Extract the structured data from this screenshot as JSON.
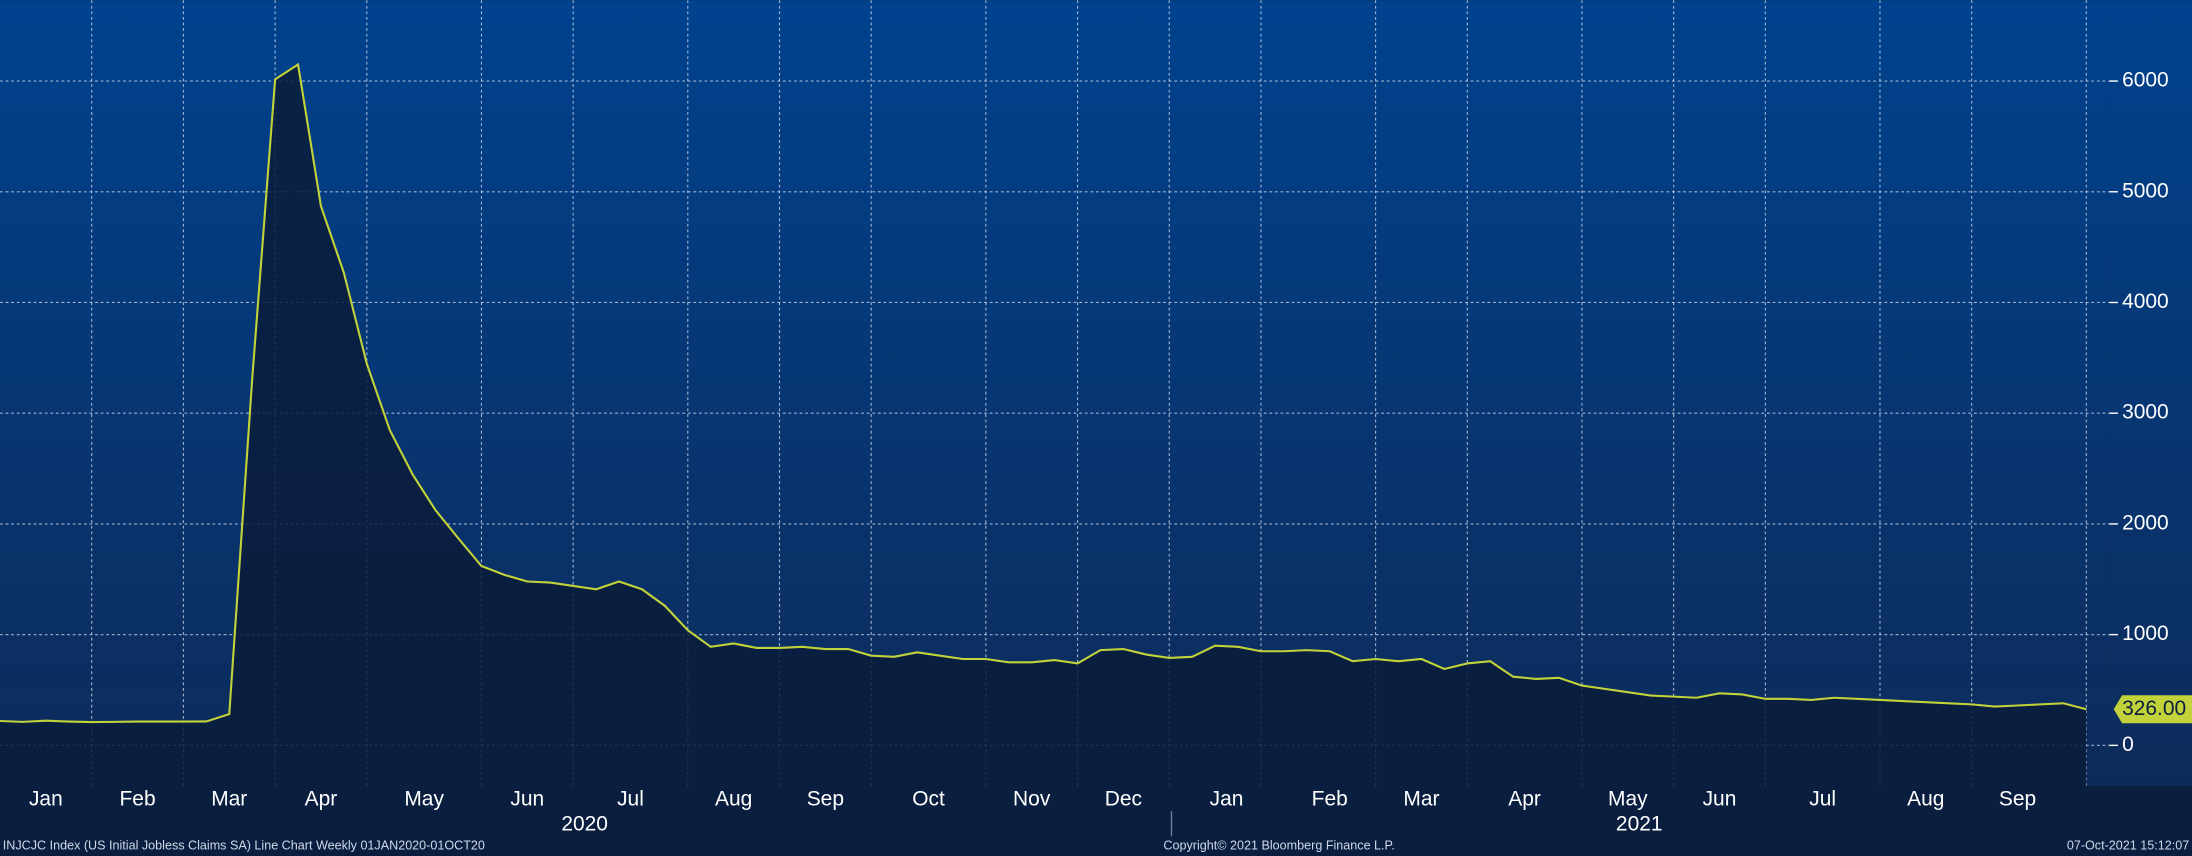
{
  "chart_data": {
    "type": "line",
    "footer_left": "INJCJC Index (US Initial Jobless Claims SA) Line Chart  Weekly 01JAN2020-01OCT20",
    "footer_center": "Copyright© 2021 Bloomberg Finance L.P.",
    "footer_right": "07-Oct-2021 15:12:07",
    "series": [
      {
        "name": "INJCJC Index",
        "color": "#c2d23a",
        "values": [
          220,
          212,
          223,
          215,
          210,
          212,
          215,
          215,
          215,
          216,
          282,
          3307,
          6015,
          6149,
          4869,
          4267,
          3446,
          2849,
          2446,
          2123,
          1867,
          1620,
          1540,
          1480,
          1470,
          1440,
          1410,
          1480,
          1410,
          1260,
          1040,
          890,
          920,
          880,
          880,
          890,
          870,
          870,
          810,
          800,
          840,
          810,
          780,
          780,
          750,
          750,
          770,
          740,
          860,
          870,
          820,
          790,
          800,
          900,
          890,
          850,
          850,
          860,
          850,
          760,
          780,
          760,
          780,
          690,
          740,
          760,
          620,
          600,
          610,
          540,
          510,
          480,
          450,
          440,
          430,
          470,
          460,
          420,
          420,
          410,
          430,
          420,
          410,
          400,
          390,
          380,
          370,
          350,
          360,
          370,
          380,
          326
        ],
        "value_labels": [
          null,
          null,
          null,
          null,
          null,
          null,
          null,
          null,
          null,
          null,
          null,
          null,
          null,
          null,
          null,
          null,
          null,
          null,
          null,
          null,
          null,
          null,
          null,
          null,
          null,
          null,
          null,
          null,
          null,
          null,
          null,
          null,
          null,
          null,
          null,
          null,
          null,
          null,
          null,
          null,
          null,
          null,
          null,
          null,
          null,
          null,
          null,
          null,
          null,
          null,
          null,
          null,
          null,
          null,
          null,
          null,
          null,
          null,
          null,
          null,
          null,
          null,
          null,
          null,
          null,
          null,
          null,
          null,
          null,
          null,
          null,
          null,
          null,
          null,
          null,
          null,
          null,
          null,
          null,
          null,
          null,
          null,
          null,
          null,
          null,
          null,
          null,
          null,
          null,
          null,
          null,
          "326.00"
        ]
      }
    ],
    "xlim": [
      0,
      92
    ],
    "xticks": [
      {
        "value": 2,
        "label": "Jan"
      },
      {
        "value": 6,
        "label": "Feb"
      },
      {
        "value": 10,
        "label": "Mar"
      },
      {
        "value": 14,
        "label": "Apr"
      },
      {
        "value": 18.5,
        "label": "May"
      },
      {
        "value": 23,
        "label": "Jun"
      },
      {
        "value": 27.5,
        "label": "Jul"
      },
      {
        "value": 32,
        "label": "Aug"
      },
      {
        "value": 36,
        "label": "Sep"
      },
      {
        "value": 40.5,
        "label": "Oct"
      },
      {
        "value": 45,
        "label": "Nov"
      },
      {
        "value": 49,
        "label": "Dec"
      },
      {
        "value": 53.5,
        "label": "Jan"
      },
      {
        "value": 58,
        "label": "Feb"
      },
      {
        "value": 62,
        "label": "Mar"
      },
      {
        "value": 66.5,
        "label": "Apr"
      },
      {
        "value": 71,
        "label": "May"
      },
      {
        "value": 75,
        "label": "Jun"
      },
      {
        "value": 79.5,
        "label": "Jul"
      },
      {
        "value": 84,
        "label": "Aug"
      },
      {
        "value": 88,
        "label": "Sep"
      }
    ],
    "years": [
      {
        "value": 25.5,
        "label": "2020"
      },
      {
        "value": 71.5,
        "label": "2021"
      }
    ],
    "xgrid": [
      4,
      8,
      12,
      16,
      21,
      25,
      30,
      34,
      38,
      43,
      47,
      51,
      55,
      60,
      64,
      69,
      73,
      77,
      82,
      86,
      91
    ],
    "ylim": [
      -366,
      6730
    ],
    "yticks": [
      0,
      1000,
      2000,
      3000,
      4000,
      5000,
      6000
    ],
    "grid": true
  }
}
